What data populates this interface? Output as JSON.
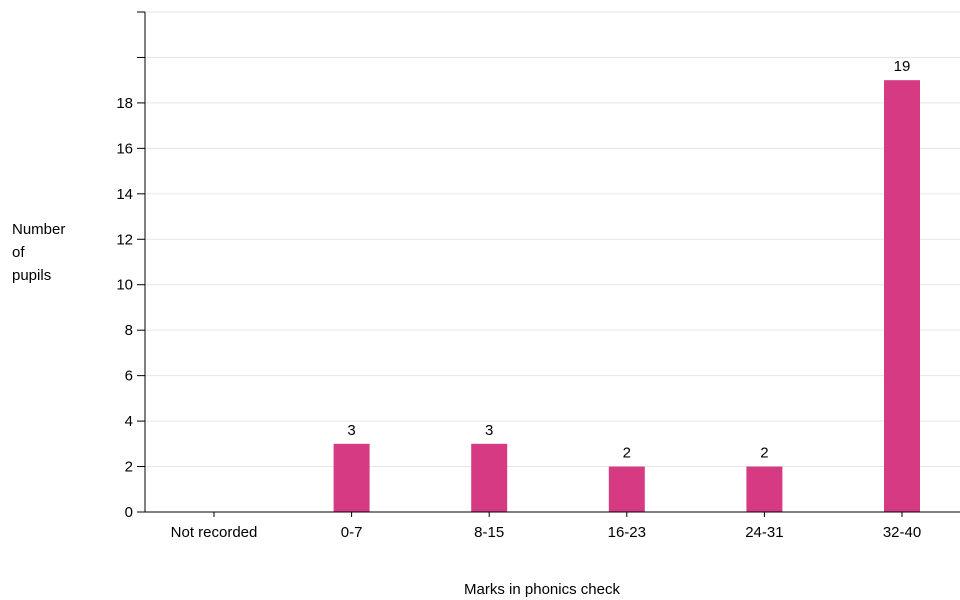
{
  "chart_data": {
    "type": "bar",
    "categories": [
      "Not recorded",
      "0-7",
      "8-15",
      "16-23",
      "24-31",
      "32-40"
    ],
    "values": [
      0,
      3,
      3,
      2,
      2,
      19
    ],
    "data_labels": [
      "",
      "3",
      "3",
      "2",
      "2",
      "19"
    ],
    "title": "",
    "xlabel": "Marks in phonics check",
    "ylabel_lines": [
      "Number",
      "of",
      "pupils"
    ],
    "ylim": [
      0,
      22
    ],
    "yticks": [
      0,
      2,
      4,
      6,
      8,
      10,
      12,
      14,
      16,
      18,
      20,
      22
    ],
    "ytick_labels": [
      "0",
      "2",
      "4",
      "6",
      "8",
      "10",
      "12",
      "14",
      "16",
      "18",
      "",
      ""
    ],
    "grid": true,
    "bar_color": "#d63a82",
    "grid_color": "#e6e6e6"
  }
}
